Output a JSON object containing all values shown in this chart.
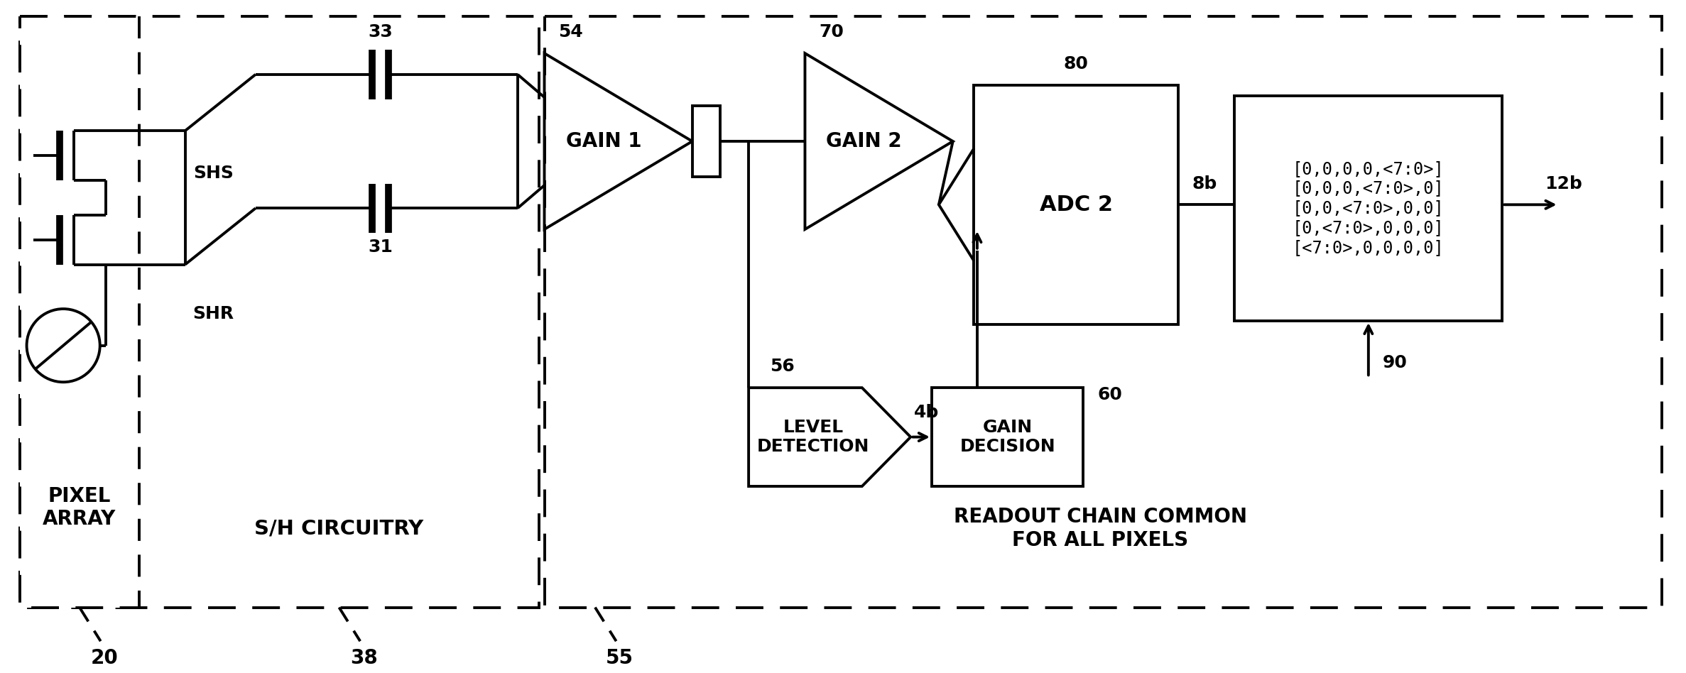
{
  "bg_color": "#ffffff",
  "line_color": "#000000",
  "lw": 2.5,
  "fig_width": 23.74,
  "fig_height": 9.48,
  "dpi": 100,
  "labels": {
    "pixel_array": "PIXEL\nARRAY",
    "sh_circuitry": "S/H CIRCUITRY",
    "gain1": "GAIN 1",
    "gain2": "GAIN 2",
    "level_detection": "LEVEL\nDETECTION",
    "gain_decision": "GAIN\nDECISION",
    "adc2": "ADC 2",
    "readout_chain": "READOUT CHAIN COMMON\nFOR ALL PIXELS",
    "shs": "SHS",
    "shr": "SHR",
    "ref20": "20",
    "ref38": "38",
    "ref55": "55",
    "ref33": "33",
    "ref31": "31",
    "ref54": "54",
    "ref56": "56",
    "ref70": "70",
    "ref80": "80",
    "ref60": "60",
    "ref4b": "4b",
    "ref8b": "8b",
    "ref12b": "12b",
    "ref90": "90",
    "output_bits": "[0,0,0,0,<7:0>]\n[0,0,0,<7:0>,0]\n[0,0,<7:0>,0,0]\n[0,<7:0>,0,0,0]\n[<7:0>,0,0,0,0]"
  }
}
